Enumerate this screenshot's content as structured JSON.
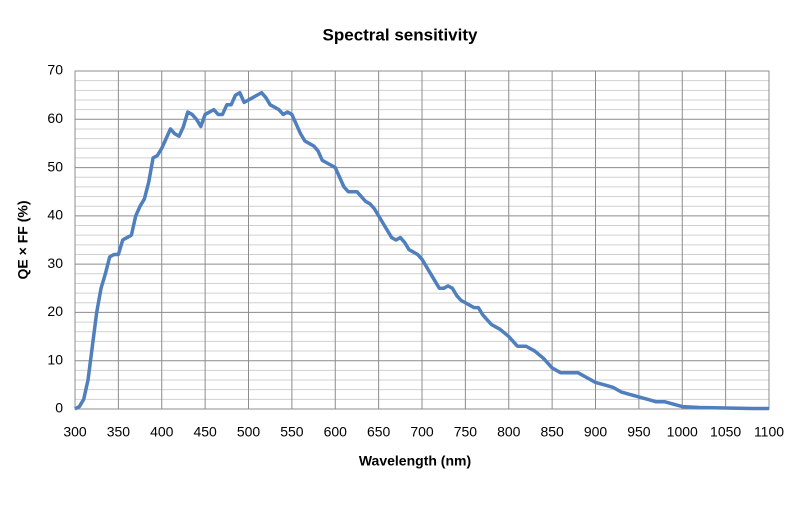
{
  "chart_data": {
    "type": "line",
    "title": "Spectral sensitivity",
    "x_label": "Wavelength (nm)",
    "y_label": "QE × FF (%)",
    "x": [
      300,
      305,
      310,
      315,
      320,
      325,
      330,
      335,
      340,
      345,
      350,
      355,
      360,
      365,
      370,
      375,
      380,
      385,
      390,
      395,
      400,
      405,
      410,
      415,
      420,
      425,
      430,
      435,
      440,
      445,
      450,
      455,
      460,
      465,
      470,
      475,
      480,
      485,
      490,
      495,
      500,
      505,
      510,
      515,
      520,
      525,
      530,
      535,
      540,
      545,
      550,
      555,
      560,
      565,
      570,
      575,
      580,
      585,
      590,
      595,
      600,
      605,
      610,
      615,
      620,
      625,
      630,
      635,
      640,
      645,
      650,
      655,
      660,
      665,
      670,
      675,
      680,
      685,
      690,
      695,
      700,
      705,
      710,
      715,
      720,
      725,
      730,
      735,
      740,
      745,
      750,
      755,
      760,
      765,
      770,
      775,
      780,
      785,
      790,
      800,
      810,
      820,
      830,
      840,
      850,
      860,
      870,
      880,
      890,
      900,
      910,
      920,
      930,
      940,
      950,
      960,
      970,
      980,
      990,
      1000,
      1020,
      1050,
      1080,
      1100
    ],
    "series": [
      {
        "name": "QE × FF",
        "color": "#4f7fbd",
        "values": [
          0,
          0.5,
          2,
          6,
          13,
          20,
          25,
          28,
          31.5,
          32,
          32,
          35,
          35.5,
          36,
          40,
          42,
          43.5,
          47,
          52,
          52.5,
          54,
          56,
          58,
          57,
          56.5,
          58.5,
          61.5,
          61,
          60,
          58.5,
          61,
          61.5,
          62,
          61,
          61,
          63,
          63,
          65,
          65.5,
          63.5,
          64,
          64.5,
          65,
          65.5,
          64.5,
          63,
          62.5,
          62,
          61,
          61.5,
          61,
          59,
          57,
          55.5,
          55,
          54.5,
          53.5,
          51.5,
          51,
          50.5,
          50,
          48,
          46,
          45,
          45,
          45,
          44,
          43,
          42.5,
          41.5,
          40,
          38.5,
          37,
          35.5,
          35,
          35.5,
          34.5,
          33,
          32.5,
          32,
          31,
          29.5,
          28,
          26.5,
          25,
          25,
          25.5,
          25,
          23.5,
          22.5,
          22,
          21.5,
          21,
          21,
          19.5,
          18.5,
          17.5,
          17,
          16.5,
          15,
          13,
          13,
          12,
          10.5,
          8.5,
          7.5,
          7.5,
          7.5,
          6.5,
          5.5,
          5,
          4.5,
          3.5,
          3,
          2.5,
          2,
          1.5,
          1.5,
          1,
          0.5,
          0.3,
          0.2,
          0.1,
          0.1
        ]
      }
    ],
    "xlim": [
      300,
      1100
    ],
    "ylim": [
      0,
      70
    ],
    "xticks": [
      300,
      350,
      400,
      450,
      500,
      550,
      600,
      650,
      700,
      750,
      800,
      850,
      900,
      950,
      1000,
      1050,
      1100
    ],
    "yticks": [
      0,
      10,
      20,
      30,
      40,
      50,
      60,
      70
    ],
    "y_minor_ticks": [
      2,
      4,
      6,
      8,
      12,
      14,
      16,
      18,
      22,
      24,
      26,
      28,
      32,
      34,
      36,
      38,
      42,
      44,
      46,
      48,
      52,
      54,
      56,
      58,
      62,
      64,
      66,
      68
    ],
    "grid": true
  }
}
